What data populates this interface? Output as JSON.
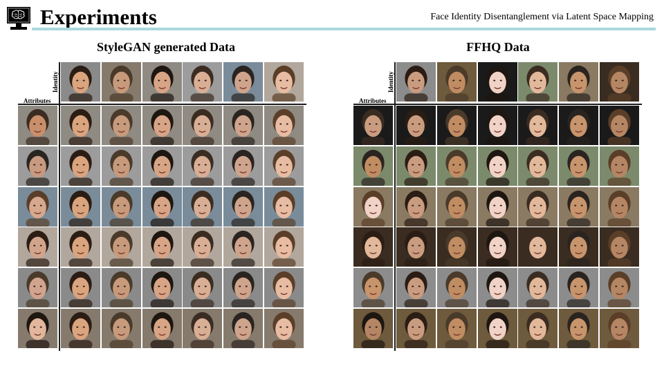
{
  "header": {
    "title": "Experiments",
    "subtitle": "Face Identity Disentanglement via Latent Space Mapping",
    "accent_color": "#a9d8dc",
    "logo_icon": "brain-monitor-icon"
  },
  "panels": [
    {
      "id": "stylegan",
      "title": "StyleGAN generated Data",
      "identity_label": "Identity",
      "attributes_label": "Attributes",
      "identity_tones": [
        "#d9a47e",
        "#c79a7c",
        "#d7a486",
        "#d8ae94",
        "#cfa48c",
        "#e7bca2"
      ],
      "attribute_tones": [
        "#c98e6a",
        "#c89a80",
        "#d6a88e",
        "#d1a48c",
        "#d0a48e",
        "#e2b69c"
      ],
      "backgrounds": [
        "#8a8a8a",
        "#857a6c",
        "#8f8a82",
        "#9c9c9c",
        "#7a8c9a",
        "#b2a79c"
      ]
    },
    {
      "id": "ffhq",
      "title": "FFHQ Data",
      "identity_label": "Identity",
      "attributes_label": "Attributes",
      "identity_tones": [
        "#c99c80",
        "#c08c62",
        "#f0d2c6",
        "#e2b89a",
        "#c7946c",
        "#b48664"
      ],
      "attribute_tones": [
        "#c99c80",
        "#c08c62",
        "#f0d2c6",
        "#e2b89a",
        "#c7946c",
        "#b48664"
      ],
      "backgrounds": [
        "#8c8c8c",
        "#6e5a3c",
        "#1a1a1a",
        "#7c8a6c",
        "#8a7a62",
        "#3a2c20"
      ]
    }
  ]
}
